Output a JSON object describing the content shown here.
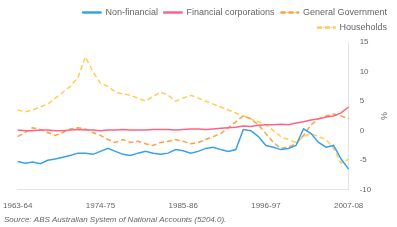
{
  "chart_data": {
    "type": "line",
    "y_label": "%",
    "annotations": [
      "Source: ABS Australian System of National Accounts (5204.0)."
    ],
    "categories": [
      "1963-64",
      null,
      null,
      null,
      null,
      null,
      null,
      null,
      null,
      null,
      null,
      "1974-75",
      null,
      null,
      null,
      null,
      null,
      null,
      null,
      null,
      null,
      null,
      "1985-86",
      null,
      null,
      null,
      null,
      null,
      null,
      null,
      null,
      null,
      null,
      "1996-97",
      null,
      null,
      null,
      null,
      null,
      null,
      null,
      null,
      null,
      null,
      "2007-08"
    ],
    "series": [
      {
        "name": "Non-financial",
        "line_style": "solid",
        "values": [
          -5.2,
          -5.5,
          -5.3,
          -5.6,
          -5.0,
          -4.8,
          -4.5,
          -4.2,
          -3.8,
          -3.8,
          -4.0,
          -3.5,
          -3.0,
          -3.5,
          -4.0,
          -4.2,
          -3.8,
          -3.5,
          -3.8,
          -4.0,
          -3.8,
          -3.2,
          -3.4,
          -3.8,
          -3.5,
          -3.0,
          -2.8,
          -3.2,
          -3.5,
          -3.2,
          0.2,
          0.0,
          -1.0,
          -2.5,
          -2.8,
          -3.2,
          -3.0,
          -2.5,
          0.3,
          -0.5,
          -2.0,
          -2.8,
          -2.5,
          -4.8,
          -6.5
        ]
      },
      {
        "name": "Financial corporations",
        "line_style": "solid",
        "values": [
          0.1,
          0.0,
          0.0,
          0.1,
          0.1,
          0.0,
          0.0,
          0.1,
          0.2,
          0.1,
          0.1,
          0.0,
          0.1,
          0.1,
          0.2,
          0.1,
          0.1,
          0.1,
          0.2,
          0.2,
          0.2,
          0.1,
          0.2,
          0.3,
          0.3,
          0.2,
          0.3,
          0.4,
          0.5,
          0.6,
          0.8,
          0.7,
          0.9,
          1.0,
          1.0,
          1.1,
          1.0,
          1.3,
          1.5,
          1.8,
          2.0,
          2.3,
          2.5,
          3.0,
          4.0
        ]
      },
      {
        "name": "General Government",
        "line_style": "dashed",
        "values": [
          -1.0,
          -0.3,
          0.5,
          0.2,
          -0.3,
          -0.8,
          -0.3,
          0.3,
          0.5,
          0.3,
          -0.3,
          -0.8,
          -1.5,
          -2.0,
          -1.5,
          -2.0,
          -1.8,
          -2.2,
          -2.5,
          -2.0,
          -1.8,
          -1.5,
          -1.8,
          -2.2,
          -2.0,
          -1.5,
          -1.0,
          -0.5,
          0.5,
          1.5,
          2.5,
          2.0,
          1.0,
          -0.5,
          -2.0,
          -3.0,
          -2.8,
          -2.2,
          -0.8,
          1.0,
          2.0,
          2.5,
          2.8,
          2.5,
          2.0
        ]
      },
      {
        "name": "Households",
        "line_style": "dashed",
        "values": [
          3.5,
          3.2,
          3.5,
          4.0,
          4.5,
          5.5,
          6.5,
          7.5,
          9.0,
          12.5,
          10.0,
          8.0,
          7.5,
          6.5,
          6.2,
          6.0,
          5.5,
          5.0,
          5.8,
          6.5,
          6.0,
          5.0,
          5.5,
          6.0,
          5.5,
          5.0,
          4.5,
          4.0,
          3.5,
          3.0,
          2.5,
          2.0,
          1.5,
          1.0,
          0.0,
          -1.0,
          -1.5,
          -2.0,
          -1.0,
          -0.5,
          -1.0,
          -1.5,
          -3.0,
          -5.5,
          -4.8
        ]
      }
    ],
    "ylim": [
      -10,
      15
    ],
    "yticks": [
      -10,
      -5,
      0,
      5,
      10,
      15
    ],
    "grid": false,
    "legend": "upper right"
  }
}
